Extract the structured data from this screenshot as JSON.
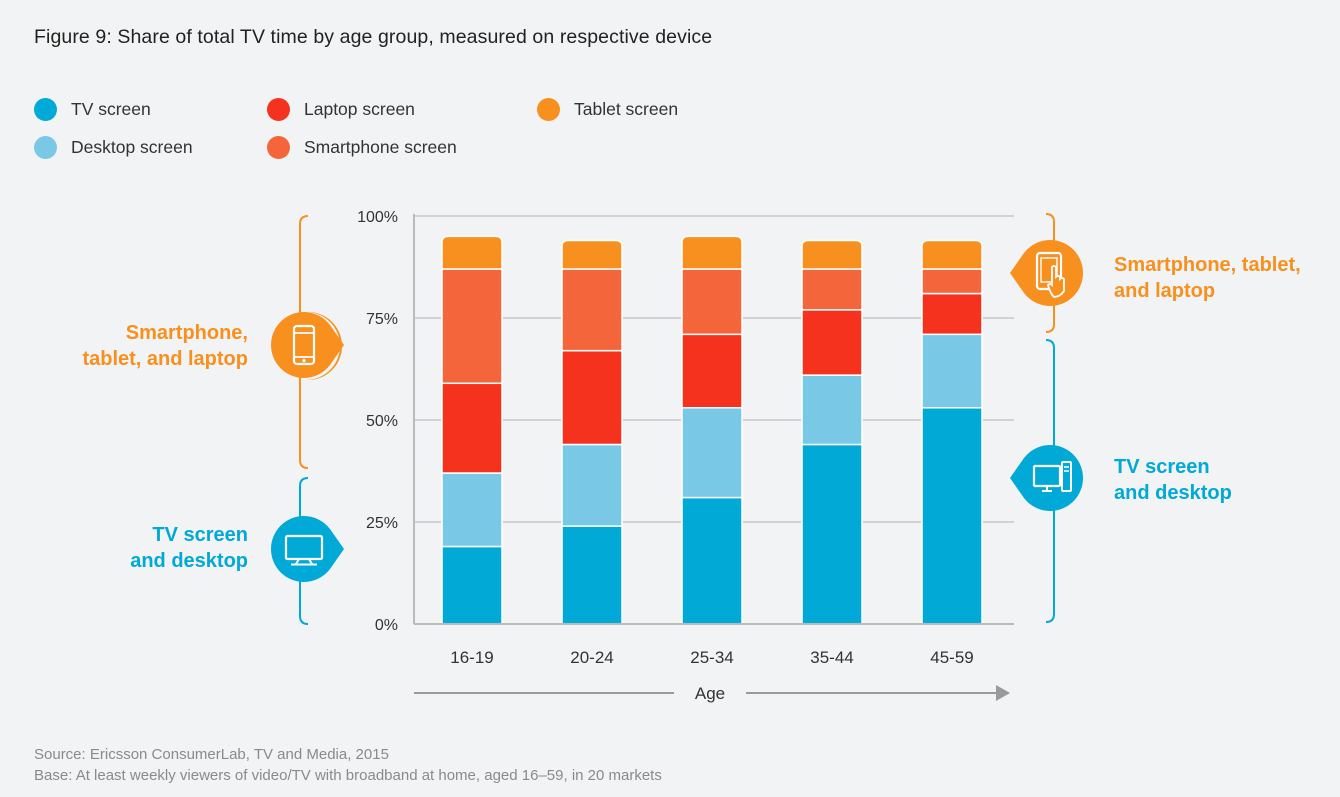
{
  "title": "Figure 9: Share of total TV time by age group, measured on respective device",
  "legend": [
    {
      "label": "TV screen",
      "color": "#00a9d6"
    },
    {
      "label": "Laptop screen",
      "color": "#f5321e"
    },
    {
      "label": "Tablet screen",
      "color": "#f7901e"
    },
    {
      "label": "Desktop screen",
      "color": "#78c8e6"
    },
    {
      "label": "Smartphone screen",
      "color": "#f4653b"
    }
  ],
  "side_labels": {
    "left_top": [
      "Smartphone,",
      "tablet, and laptop"
    ],
    "left_bottom": [
      "TV screen",
      "and desktop"
    ],
    "right_top": [
      "Smartphone, tablet,",
      "and laptop"
    ],
    "right_bottom": [
      "TV screen",
      "and desktop"
    ],
    "orange_color": "#f7901e",
    "blue_color": "#00a9d6",
    "left_top_icon": "smartphone-icon",
    "left_bottom_icon": "tv-screen-icon",
    "right_top_icon": "tablet-touch-icon",
    "right_bottom_icon": "desktop-computer-icon"
  },
  "source": {
    "line1": "Source: Ericsson ConsumerLab, TV and Media, 2015",
    "line2": "Base: At least weekly viewers of video/TV with broadband at home, aged 16–59, in 20 markets"
  },
  "chart_data": {
    "type": "bar",
    "stacked": true,
    "categories": [
      "16-19",
      "20-24",
      "25-34",
      "35-44",
      "45-59"
    ],
    "series": [
      {
        "name": "TV screen",
        "color": "#00a9d6",
        "values": [
          19,
          24,
          31,
          44,
          53
        ]
      },
      {
        "name": "Desktop screen",
        "color": "#78c8e6",
        "values": [
          18,
          20,
          22,
          17,
          18
        ]
      },
      {
        "name": "Laptop screen",
        "color": "#f5321e",
        "values": [
          22,
          23,
          18,
          16,
          10
        ]
      },
      {
        "name": "Smartphone screen",
        "color": "#f4653b",
        "values": [
          28,
          20,
          16,
          10,
          6
        ]
      },
      {
        "name": "Tablet screen",
        "color": "#f7901e",
        "values": [
          8,
          7,
          8,
          7,
          7
        ]
      }
    ],
    "xlabel": "Age",
    "yticks": [
      "0%",
      "25%",
      "50%",
      "75%",
      "100%"
    ],
    "ylim": [
      0,
      100
    ],
    "grid": true,
    "legend_position": "top-left"
  }
}
